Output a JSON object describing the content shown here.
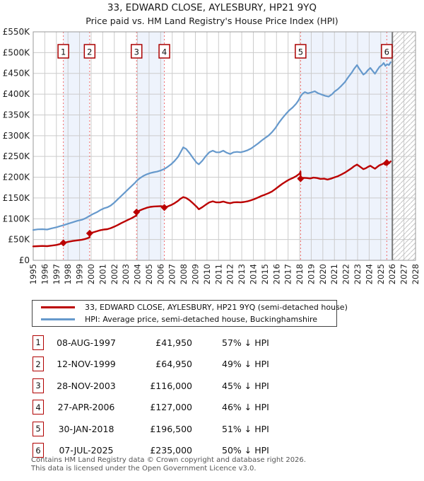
{
  "title": "33, EDWARD CLOSE, AYLESBURY, HP21 9YQ",
  "subtitle": "Price paid vs. HM Land Registry's House Price Index (HPI)",
  "legend": [
    {
      "label": "33, EDWARD CLOSE, AYLESBURY, HP21 9YQ (semi-detached house)",
      "color": "#bb0000"
    },
    {
      "label": "HPI: Average price, semi-detached house, Buckinghamshire",
      "color": "#6699cc"
    }
  ],
  "table": {
    "rows": [
      {
        "num": "1",
        "date": "08-AUG-1997",
        "price": "£41,950",
        "vs_hpi": "57% ↓ HPI"
      },
      {
        "num": "2",
        "date": "12-NOV-1999",
        "price": "£64,950",
        "vs_hpi": "49% ↓ HPI"
      },
      {
        "num": "3",
        "date": "28-NOV-2003",
        "price": "£116,000",
        "vs_hpi": "45% ↓ HPI"
      },
      {
        "num": "4",
        "date": "27-APR-2006",
        "price": "£127,000",
        "vs_hpi": "46% ↓ HPI"
      },
      {
        "num": "5",
        "date": "30-JAN-2018",
        "price": "£196,500",
        "vs_hpi": "51% ↓ HPI"
      },
      {
        "num": "6",
        "date": "07-JUL-2025",
        "price": "£235,000",
        "vs_hpi": "50% ↓ HPI"
      }
    ]
  },
  "footer": {
    "line1": "Contains HM Land Registry data © Crown copyright and database right 2026.",
    "line2": "This data is licensed under the Open Government Licence v3.0."
  },
  "chart_data": {
    "type": "line",
    "title": "33, EDWARD CLOSE, AYLESBURY, HP21 9YQ — Price paid vs. HPI",
    "x_range": [
      1995,
      2028
    ],
    "y_range": [
      0,
      550000
    ],
    "grid": true,
    "legend_position": "below",
    "y_tick_labels": [
      "£0",
      "£50K",
      "£100K",
      "£150K",
      "£200K",
      "£250K",
      "£300K",
      "£350K",
      "£400K",
      "£450K",
      "£500K",
      "£550K"
    ],
    "x_tick_labels": [
      "1995",
      "1996",
      "1997",
      "1998",
      "1999",
      "2000",
      "2001",
      "2002",
      "2003",
      "2004",
      "2005",
      "2006",
      "2007",
      "2008",
      "2009",
      "2010",
      "2011",
      "2012",
      "2013",
      "2014",
      "2015",
      "2016",
      "2017",
      "2018",
      "2019",
      "2020",
      "2021",
      "2022",
      "2023",
      "2024",
      "2025",
      "2026",
      "2027",
      "2028"
    ],
    "colors": {
      "property_line": "#bb0000",
      "hpi_line": "#6699cc",
      "sale_dashed_line": "#f26a6a",
      "ownership_band": "#eef3fc",
      "grid": "#cccccc",
      "frame": "#999999",
      "today_line": "#777777",
      "hatch": "#c4c4c4",
      "badge_border": "#aa0000"
    },
    "ownership_bands": [
      [
        1997.6,
        1999.87
      ],
      [
        2003.92,
        2006.32
      ],
      [
        2018.08,
        2026.0
      ]
    ],
    "future_hatch_band": [
      2026.0,
      2028.0
    ],
    "today_line_year": 2026.0,
    "sale_markers": [
      {
        "num": "1",
        "year": 1997.6,
        "price": 41950,
        "date": "08-AUG-1997"
      },
      {
        "num": "2",
        "year": 1999.87,
        "price": 64950,
        "date": "12-NOV-1999"
      },
      {
        "num": "3",
        "year": 2003.92,
        "price": 116000,
        "date": "28-NOV-2003"
      },
      {
        "num": "4",
        "year": 2006.32,
        "price": 127000,
        "date": "27-APR-2006"
      },
      {
        "num": "5",
        "year": 2018.08,
        "price": 196500,
        "date": "30-JAN-2018"
      },
      {
        "num": "6",
        "year": 2025.52,
        "price": 235000,
        "date": "07-JUL-2025"
      }
    ],
    "series": [
      {
        "name": "HPI: Average price, semi-detached house, Buckinghamshire",
        "color": "#6699cc",
        "points": [
          [
            1995.0,
            73000
          ],
          [
            1995.4,
            74500
          ],
          [
            1995.8,
            75000
          ],
          [
            1996.2,
            74000
          ],
          [
            1996.6,
            77000
          ],
          [
            1997.0,
            79500
          ],
          [
            1997.3,
            82000
          ],
          [
            1997.6,
            84500
          ],
          [
            1998.0,
            88000
          ],
          [
            1998.4,
            91500
          ],
          [
            1998.8,
            95000
          ],
          [
            1999.2,
            97500
          ],
          [
            1999.5,
            101000
          ],
          [
            1999.87,
            107000
          ],
          [
            2000.2,
            112000
          ],
          [
            2000.5,
            116000
          ],
          [
            2000.8,
            121000
          ],
          [
            2001.1,
            125000
          ],
          [
            2001.4,
            127500
          ],
          [
            2001.7,
            132000
          ],
          [
            2002.0,
            139000
          ],
          [
            2002.3,
            147000
          ],
          [
            2002.6,
            155000
          ],
          [
            2002.9,
            163000
          ],
          [
            2003.2,
            171000
          ],
          [
            2003.5,
            179000
          ],
          [
            2003.8,
            187000
          ],
          [
            2003.92,
            191000
          ],
          [
            2004.2,
            197500
          ],
          [
            2004.5,
            203000
          ],
          [
            2004.8,
            207000
          ],
          [
            2005.1,
            210000
          ],
          [
            2005.4,
            212000
          ],
          [
            2005.7,
            213500
          ],
          [
            2006.0,
            216000
          ],
          [
            2006.32,
            220000
          ],
          [
            2006.6,
            225000
          ],
          [
            2006.9,
            231000
          ],
          [
            2007.2,
            239000
          ],
          [
            2007.5,
            249000
          ],
          [
            2007.7,
            259000
          ],
          [
            2007.95,
            272000
          ],
          [
            2008.2,
            268000
          ],
          [
            2008.5,
            258000
          ],
          [
            2008.8,
            246000
          ],
          [
            2009.1,
            235000
          ],
          [
            2009.3,
            231000
          ],
          [
            2009.6,
            240000
          ],
          [
            2009.9,
            251000
          ],
          [
            2010.2,
            260000
          ],
          [
            2010.5,
            264000
          ],
          [
            2010.8,
            260000
          ],
          [
            2011.1,
            260000
          ],
          [
            2011.4,
            264000
          ],
          [
            2011.7,
            259000
          ],
          [
            2012.0,
            256000
          ],
          [
            2012.3,
            260000
          ],
          [
            2012.6,
            261000
          ],
          [
            2012.9,
            260000
          ],
          [
            2013.2,
            262000
          ],
          [
            2013.5,
            265000
          ],
          [
            2013.8,
            269000
          ],
          [
            2014.1,
            275000
          ],
          [
            2014.4,
            281000
          ],
          [
            2014.7,
            288000
          ],
          [
            2015.0,
            294000
          ],
          [
            2015.3,
            300000
          ],
          [
            2015.6,
            308000
          ],
          [
            2015.9,
            318000
          ],
          [
            2016.2,
            331000
          ],
          [
            2016.5,
            342000
          ],
          [
            2016.8,
            352000
          ],
          [
            2017.1,
            361000
          ],
          [
            2017.4,
            368000
          ],
          [
            2017.7,
            377000
          ],
          [
            2017.9,
            385000
          ],
          [
            2018.08,
            395000
          ],
          [
            2018.25,
            401000
          ],
          [
            2018.45,
            405000
          ],
          [
            2018.7,
            402000
          ],
          [
            2019.0,
            404000
          ],
          [
            2019.3,
            407000
          ],
          [
            2019.6,
            402000
          ],
          [
            2019.9,
            399000
          ],
          [
            2020.2,
            396000
          ],
          [
            2020.5,
            394000
          ],
          [
            2020.8,
            400000
          ],
          [
            2021.0,
            406000
          ],
          [
            2021.3,
            412000
          ],
          [
            2021.6,
            420000
          ],
          [
            2021.9,
            429000
          ],
          [
            2022.2,
            441000
          ],
          [
            2022.5,
            452000
          ],
          [
            2022.7,
            461000
          ],
          [
            2022.95,
            470000
          ],
          [
            2023.1,
            463000
          ],
          [
            2023.3,
            455000
          ],
          [
            2023.5,
            447000
          ],
          [
            2023.7,
            451000
          ],
          [
            2023.9,
            458000
          ],
          [
            2024.1,
            463000
          ],
          [
            2024.3,
            456000
          ],
          [
            2024.5,
            449000
          ],
          [
            2024.7,
            458000
          ],
          [
            2024.9,
            466000
          ],
          [
            2025.1,
            470000
          ],
          [
            2025.25,
            475000
          ],
          [
            2025.4,
            468000
          ],
          [
            2025.55,
            472000
          ],
          [
            2025.7,
            470000
          ],
          [
            2025.85,
            477000
          ]
        ]
      },
      {
        "name": "33, EDWARD CLOSE, AYLESBURY, HP21 9YQ (semi-detached house)",
        "color": "#bb0000",
        "points": [
          [
            1995.0,
            33500
          ],
          [
            1995.4,
            34000
          ],
          [
            1995.8,
            34500
          ],
          [
            1996.2,
            34000
          ],
          [
            1996.6,
            35500
          ],
          [
            1997.0,
            37000
          ],
          [
            1997.3,
            39000
          ],
          [
            1997.6,
            41950
          ],
          [
            1998.0,
            44500
          ],
          [
            1998.4,
            46500
          ],
          [
            1998.8,
            48000
          ],
          [
            1999.2,
            49500
          ],
          [
            1999.5,
            51500
          ],
          [
            1999.86,
            55000
          ],
          [
            1999.87,
            64950
          ],
          [
            2000.2,
            67500
          ],
          [
            2000.5,
            70000
          ],
          [
            2000.8,
            72500
          ],
          [
            2001.1,
            74000
          ],
          [
            2001.4,
            75000
          ],
          [
            2001.7,
            77500
          ],
          [
            2002.0,
            81000
          ],
          [
            2002.3,
            85000
          ],
          [
            2002.6,
            89500
          ],
          [
            2002.9,
            93500
          ],
          [
            2003.2,
            97500
          ],
          [
            2003.5,
            101500
          ],
          [
            2003.91,
            108000
          ],
          [
            2003.92,
            116000
          ],
          [
            2004.2,
            120000
          ],
          [
            2004.5,
            123500
          ],
          [
            2004.8,
            126500
          ],
          [
            2005.1,
            128500
          ],
          [
            2005.4,
            129500
          ],
          [
            2005.7,
            130000
          ],
          [
            2006.0,
            130500
          ],
          [
            2006.31,
            129500
          ],
          [
            2006.32,
            127000
          ],
          [
            2006.6,
            129500
          ],
          [
            2006.9,
            133000
          ],
          [
            2007.2,
            137500
          ],
          [
            2007.5,
            143000
          ],
          [
            2007.7,
            148000
          ],
          [
            2007.95,
            152000
          ],
          [
            2008.2,
            150000
          ],
          [
            2008.5,
            144500
          ],
          [
            2008.8,
            137000
          ],
          [
            2009.1,
            129000
          ],
          [
            2009.3,
            123000
          ],
          [
            2009.6,
            128000
          ],
          [
            2009.9,
            134000
          ],
          [
            2010.2,
            139500
          ],
          [
            2010.5,
            142000
          ],
          [
            2010.8,
            139500
          ],
          [
            2011.1,
            139500
          ],
          [
            2011.4,
            141500
          ],
          [
            2011.7,
            139000
          ],
          [
            2012.0,
            137500
          ],
          [
            2012.3,
            139500
          ],
          [
            2012.6,
            140000
          ],
          [
            2012.9,
            139500
          ],
          [
            2013.2,
            140500
          ],
          [
            2013.5,
            142000
          ],
          [
            2013.8,
            144500
          ],
          [
            2014.1,
            147500
          ],
          [
            2014.4,
            151000
          ],
          [
            2014.7,
            155000
          ],
          [
            2015.0,
            158000
          ],
          [
            2015.3,
            161500
          ],
          [
            2015.6,
            165500
          ],
          [
            2015.9,
            171500
          ],
          [
            2016.2,
            178000
          ],
          [
            2016.5,
            184000
          ],
          [
            2016.8,
            189500
          ],
          [
            2017.1,
            194500
          ],
          [
            2017.4,
            198000
          ],
          [
            2017.7,
            202500
          ],
          [
            2018.0,
            209000
          ],
          [
            2018.07,
            213500
          ],
          [
            2018.08,
            196500
          ],
          [
            2018.3,
            198500
          ],
          [
            2018.6,
            198000
          ],
          [
            2018.9,
            197000
          ],
          [
            2019.2,
            199000
          ],
          [
            2019.5,
            198000
          ],
          [
            2019.8,
            196000
          ],
          [
            2020.1,
            196500
          ],
          [
            2020.4,
            194500
          ],
          [
            2020.7,
            196500
          ],
          [
            2021.0,
            199500
          ],
          [
            2021.3,
            202500
          ],
          [
            2021.6,
            206500
          ],
          [
            2021.9,
            211000
          ],
          [
            2022.2,
            216500
          ],
          [
            2022.5,
            222000
          ],
          [
            2022.7,
            226500
          ],
          [
            2022.95,
            230500
          ],
          [
            2023.1,
            227500
          ],
          [
            2023.3,
            223500
          ],
          [
            2023.5,
            219500
          ],
          [
            2023.7,
            221500
          ],
          [
            2023.9,
            225000
          ],
          [
            2024.1,
            227500
          ],
          [
            2024.3,
            224000
          ],
          [
            2024.5,
            220500
          ],
          [
            2024.7,
            225000
          ],
          [
            2024.9,
            229000
          ],
          [
            2025.1,
            231000
          ],
          [
            2025.25,
            233500
          ],
          [
            2025.4,
            230000
          ],
          [
            2025.52,
            235000
          ],
          [
            2025.7,
            233500
          ],
          [
            2025.85,
            238000
          ]
        ]
      }
    ]
  }
}
